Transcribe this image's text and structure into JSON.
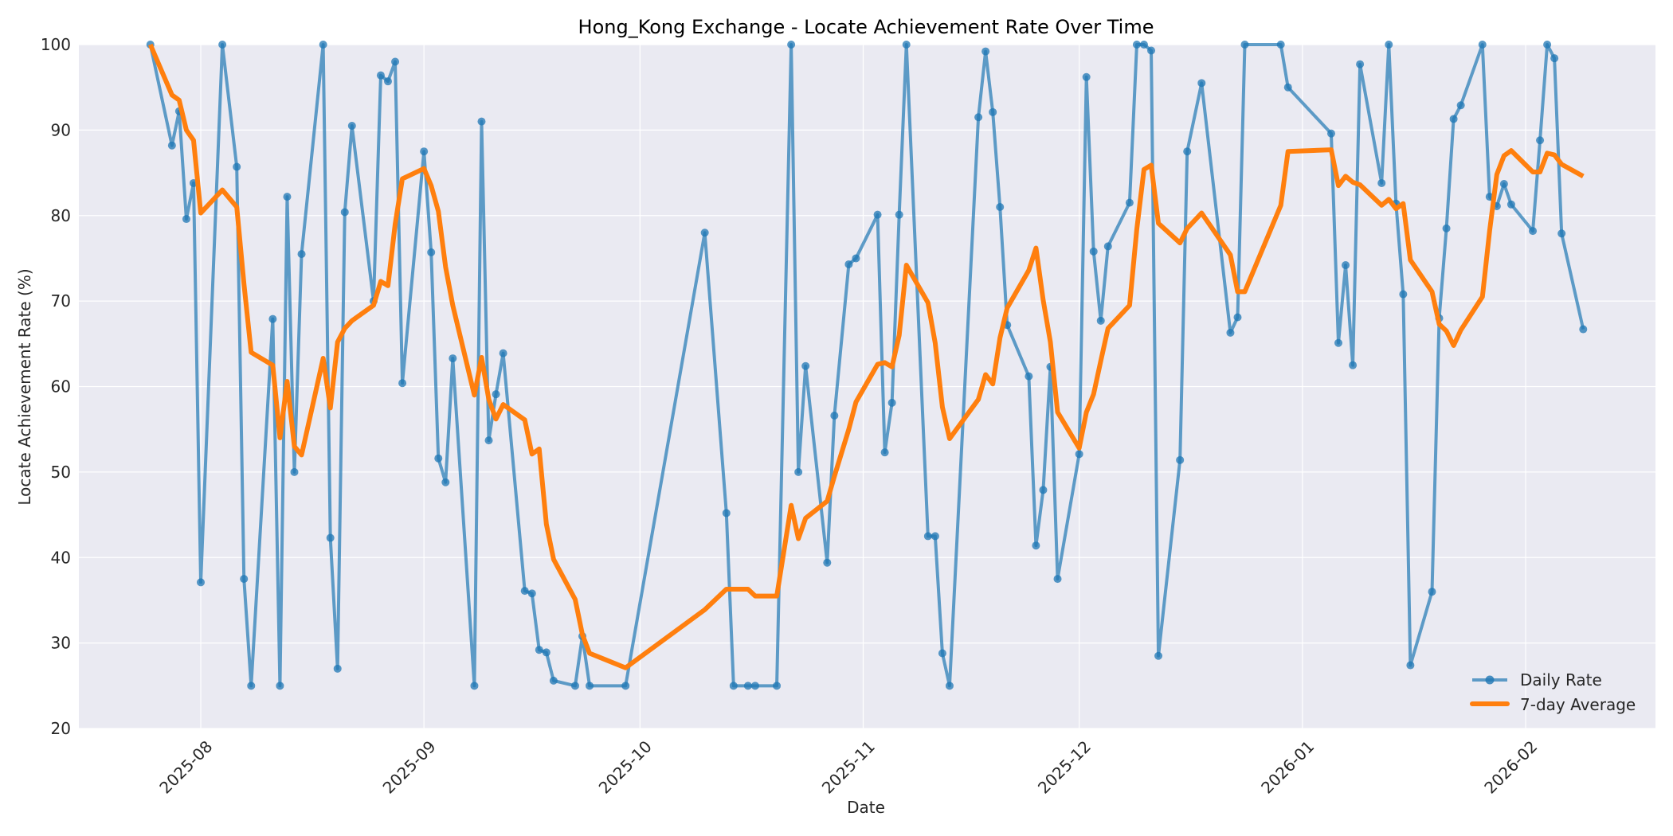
{
  "chart_data": {
    "type": "line",
    "title": "Hong_Kong Exchange - Locate Achievement Rate Over Time",
    "xlabel": "Date",
    "ylabel": "Locate Achievement Rate (%)",
    "ylim": [
      20,
      100
    ],
    "yticks": [
      20,
      30,
      40,
      50,
      60,
      70,
      80,
      90,
      100
    ],
    "xlim": [
      "2025-07-18",
      "2026-02-16"
    ],
    "xticks": [
      "2025-08",
      "2025-09",
      "2025-10",
      "2025-11",
      "2025-12",
      "2026-01",
      "2026-02"
    ],
    "grid": true,
    "legend_position": "lower right",
    "colors": {
      "daily": "#1f77b4",
      "avg": "#ff7f0e",
      "plot_bg": "#eaeaf2",
      "grid": "#ffffff"
    },
    "x": [
      "2025-07-25",
      "2025-07-28",
      "2025-07-29",
      "2025-07-30",
      "2025-07-31",
      "2025-08-01",
      "2025-08-04",
      "2025-08-06",
      "2025-08-07",
      "2025-08-08",
      "2025-08-11",
      "2025-08-12",
      "2025-08-13",
      "2025-08-14",
      "2025-08-15",
      "2025-08-18",
      "2025-08-19",
      "2025-08-20",
      "2025-08-21",
      "2025-08-22",
      "2025-08-25",
      "2025-08-26",
      "2025-08-27",
      "2025-08-28",
      "2025-08-29",
      "2025-09-01",
      "2025-09-02",
      "2025-09-03",
      "2025-09-04",
      "2025-09-05",
      "2025-09-08",
      "2025-09-09",
      "2025-09-10",
      "2025-09-11",
      "2025-09-12",
      "2025-09-15",
      "2025-09-16",
      "2025-09-17",
      "2025-09-18",
      "2025-09-19",
      "2025-09-22",
      "2025-09-23",
      "2025-09-24",
      "2025-09-29",
      "2025-10-10",
      "2025-10-13",
      "2025-10-14",
      "2025-10-16",
      "2025-10-17",
      "2025-10-20",
      "2025-10-22",
      "2025-10-23",
      "2025-10-24",
      "2025-10-27",
      "2025-10-28",
      "2025-10-30",
      "2025-10-31",
      "2025-11-03",
      "2025-11-04",
      "2025-11-05",
      "2025-11-06",
      "2025-11-07",
      "2025-11-10",
      "2025-11-11",
      "2025-11-12",
      "2025-11-13",
      "2025-11-17",
      "2025-11-18",
      "2025-11-19",
      "2025-11-20",
      "2025-11-21",
      "2025-11-24",
      "2025-11-25",
      "2025-11-26",
      "2025-11-27",
      "2025-11-28",
      "2025-12-01",
      "2025-12-02",
      "2025-12-03",
      "2025-12-04",
      "2025-12-05",
      "2025-12-08",
      "2025-12-09",
      "2025-12-10",
      "2025-12-11",
      "2025-12-12",
      "2025-12-15",
      "2025-12-16",
      "2025-12-18",
      "2025-12-22",
      "2025-12-23",
      "2025-12-24",
      "2025-12-29",
      "2025-12-30",
      "2026-01-05",
      "2026-01-06",
      "2026-01-07",
      "2026-01-08",
      "2026-01-09",
      "2026-01-12",
      "2026-01-13",
      "2026-01-14",
      "2026-01-15",
      "2026-01-16",
      "2026-01-19",
      "2026-01-20",
      "2026-01-21",
      "2026-01-22",
      "2026-01-23",
      "2026-01-26",
      "2026-01-27",
      "2026-01-28",
      "2026-01-29",
      "2026-01-30",
      "2026-02-02",
      "2026-02-03",
      "2026-02-04",
      "2026-02-05",
      "2026-02-06",
      "2026-02-09"
    ],
    "series": [
      {
        "name": "Daily Rate",
        "values": [
          100,
          88.2,
          92.2,
          79.6,
          83.8,
          37.1,
          100,
          85.7,
          37.5,
          25,
          67.9,
          25,
          82.2,
          50,
          75.5,
          100,
          42.3,
          27,
          80.4,
          90.5,
          70,
          96.4,
          95.7,
          98,
          60.4,
          87.5,
          75.7,
          51.6,
          48.8,
          63.3,
          25,
          91,
          53.7,
          59.1,
          63.9,
          36.1,
          35.8,
          29.2,
          28.9,
          25.6,
          25,
          30.8,
          25,
          25,
          78,
          45.2,
          25,
          25,
          25,
          25,
          100,
          50,
          62.4,
          39.4,
          56.6,
          74.3,
          75,
          80.1,
          52.3,
          58.1,
          80.1,
          100,
          42.5,
          42.5,
          28.8,
          25,
          91.5,
          99.2,
          92.1,
          81,
          67.2,
          61.2,
          41.4,
          47.9,
          62.3,
          37.5,
          52.1,
          96.2,
          75.8,
          67.7,
          76.4,
          81.5,
          100,
          100,
          99.3,
          28.5,
          51.4,
          87.5,
          95.5,
          66.3,
          68.1,
          100,
          100,
          95,
          89.6,
          65.1,
          74.2,
          62.5,
          97.7,
          83.8,
          100,
          81.4,
          70.8,
          27.4,
          36,
          68,
          78.5,
          91.3,
          92.9,
          100,
          82.2,
          81.1,
          83.7,
          81.3,
          78.2,
          88.8,
          100,
          98.4,
          77.9,
          66.7
        ]
      },
      {
        "name": "7-day Average",
        "values": [
          100,
          94.1,
          93.5,
          90,
          88.8,
          80.3,
          83,
          81,
          72,
          64,
          62.5,
          54,
          60.6,
          53,
          52,
          63.3,
          57.5,
          65.2,
          66.8,
          67.7,
          69.5,
          72.3,
          71.8,
          79,
          84.3,
          85.5,
          83.5,
          80.5,
          74,
          69.5,
          59,
          63.4,
          58.5,
          56.2,
          57.9,
          56.1,
          52.1,
          52.7,
          43.9,
          39.8,
          35.1,
          31,
          28.8,
          27.1,
          33.9,
          36.3,
          36.3,
          36.3,
          35.5,
          35.5,
          46.1,
          42.2,
          44.6,
          46.6,
          49.5,
          55,
          58.2,
          62.6,
          62.8,
          62.3,
          66,
          74.2,
          69.8,
          65.1,
          57.6,
          53.9,
          58.5,
          61.4,
          60.3,
          65.7,
          69.2,
          73.6,
          76.2,
          70.1,
          65.2,
          57,
          52.8,
          57,
          59.1,
          63,
          66.8,
          69.5,
          78.4,
          85.4,
          85.9,
          79.1,
          76.8,
          78.5,
          80.3,
          75.4,
          71.1,
          71.1,
          81.2,
          87.5,
          87.7,
          83.5,
          84.6,
          83.9,
          83.6,
          81.2,
          81.9,
          80.8,
          81.4,
          74.8,
          71.1,
          67.3,
          66.5,
          64.8,
          66.6,
          70.5,
          78.2,
          84.8,
          87,
          87.6,
          85.1,
          85.1,
          87.3,
          87.1,
          86,
          84.6
        ]
      }
    ]
  },
  "legend": {
    "daily_label": "Daily Rate",
    "avg_label": "7-day Average"
  }
}
